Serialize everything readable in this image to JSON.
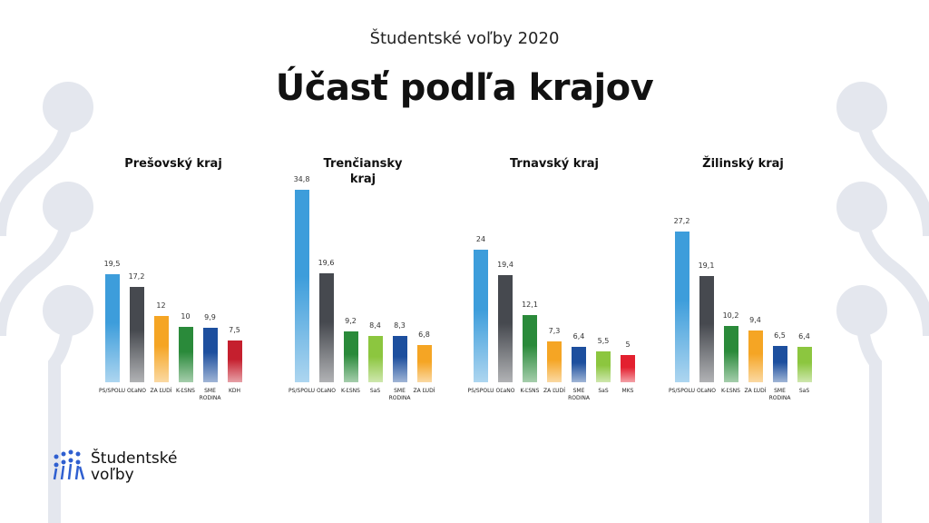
{
  "header": {
    "subtitle": "Študentské voľby 2020",
    "title": "Účasť podľa krajov"
  },
  "logo": {
    "text": "Študentské voľby"
  },
  "chart_data": [
    {
      "type": "bar",
      "title": "Prešovský kraj",
      "categories": [
        "PS/SPOLU",
        "OĽaNO",
        "ZA ĽUDÍ",
        "K-ĽSNS",
        "SME RODINA",
        "KDH"
      ],
      "values": [
        19.5,
        17.2,
        12,
        10,
        9.9,
        7.5
      ],
      "value_labels": [
        "19,5",
        "17,2",
        "12",
        "10",
        "9,9",
        "7,5"
      ],
      "colors": [
        "#3d9ddb",
        "#46494f",
        "#f5a524",
        "#2a8a3a",
        "#1d4f9e",
        "#c51f2e"
      ]
    },
    {
      "type": "bar",
      "title": "Trenčiansky kraj",
      "categories": [
        "PS/SPOLU",
        "OĽaNO",
        "K-ĽSNS",
        "SaS",
        "SME RODINA",
        "ZA ĽUDÍ"
      ],
      "values": [
        34.8,
        19.6,
        9.2,
        8.4,
        8.3,
        6.8
      ],
      "value_labels": [
        "34,8",
        "19,6",
        "9,2",
        "8,4",
        "8,3",
        "6,8"
      ],
      "colors": [
        "#3d9ddb",
        "#46494f",
        "#2a8a3a",
        "#8cc63f",
        "#1d4f9e",
        "#f5a524"
      ]
    },
    {
      "type": "bar",
      "title": "Trnavský kraj",
      "categories": [
        "PS/SPOLU",
        "OĽaNO",
        "K-ĽSNS",
        "ZA ĽUDÍ",
        "SME RODINA",
        "SaS",
        "MKS"
      ],
      "values": [
        24,
        19.4,
        12.1,
        7.3,
        6.4,
        5.5,
        5
      ],
      "value_labels": [
        "24",
        "19,4",
        "12,1",
        "7,3",
        "6,4",
        "5,5",
        "5"
      ],
      "colors": [
        "#3d9ddb",
        "#46494f",
        "#2a8a3a",
        "#f5a524",
        "#1d4f9e",
        "#8cc63f",
        "#e3202f"
      ]
    },
    {
      "type": "bar",
      "title": "Žilinský kraj",
      "categories": [
        "PS/SPOLU",
        "OĽaNO",
        "K-ĽSNS",
        "ZA ĽUDÍ",
        "SME RODINA",
        "SaS"
      ],
      "values": [
        27.2,
        19.1,
        10.2,
        9.4,
        6.5,
        6.4
      ],
      "value_labels": [
        "27,2",
        "19,1",
        "10,2",
        "9,4",
        "6,5",
        "6,4"
      ],
      "colors": [
        "#3d9ddb",
        "#46494f",
        "#2a8a3a",
        "#f5a524",
        "#1d4f9e",
        "#8cc63f"
      ]
    }
  ]
}
